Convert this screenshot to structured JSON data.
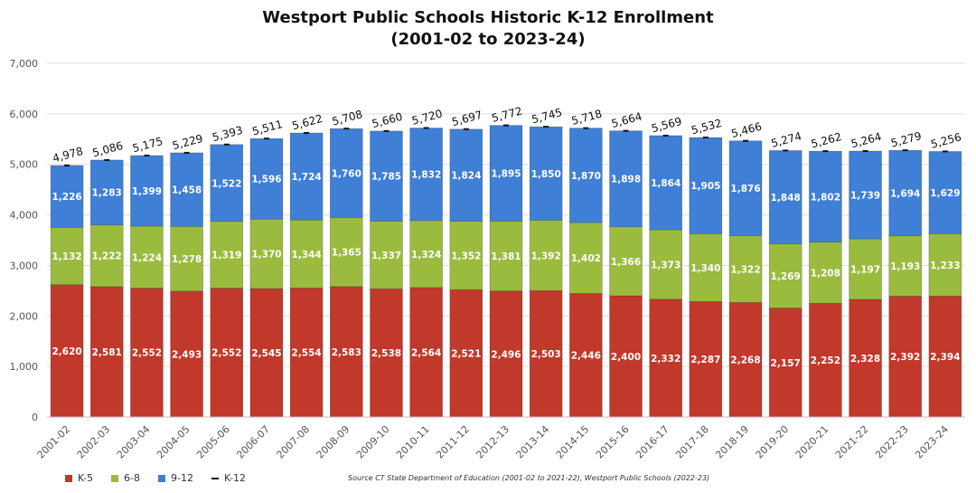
{
  "chart_data": {
    "type": "bar",
    "stacked": true,
    "title": "Westport Public Schools Historic K-12 Enrollment",
    "subtitle": "(2001-02 to 2023-24)",
    "categories": [
      "2001-02",
      "2002-03",
      "2003-04",
      "2004-05",
      "2005-06",
      "2006-07",
      "2007-08",
      "2008-09",
      "2009-10",
      "2010-11",
      "2011-12",
      "2012-13",
      "2013-14",
      "2014-15",
      "2015-16",
      "2016-17",
      "2017-18",
      "2018-19",
      "2019-20",
      "2020-21",
      "2021-22",
      "2022-23",
      "2023-24"
    ],
    "series": [
      {
        "name": "K-5",
        "color": "#c0392b",
        "values": [
          2620,
          2581,
          2552,
          2493,
          2552,
          2545,
          2554,
          2583,
          2538,
          2564,
          2521,
          2496,
          2503,
          2446,
          2400,
          2332,
          2287,
          2268,
          2157,
          2252,
          2328,
          2392,
          2394
        ]
      },
      {
        "name": "6-8",
        "color": "#9bbb3f",
        "values": [
          1132,
          1222,
          1224,
          1278,
          1319,
          1370,
          1344,
          1365,
          1337,
          1324,
          1352,
          1381,
          1392,
          1402,
          1366,
          1373,
          1340,
          1322,
          1269,
          1208,
          1197,
          1193,
          1233
        ]
      },
      {
        "name": "9-12",
        "color": "#3f7fd6",
        "values": [
          1226,
          1283,
          1399,
          1458,
          1522,
          1596,
          1724,
          1760,
          1785,
          1832,
          1824,
          1895,
          1850,
          1870,
          1898,
          1864,
          1905,
          1876,
          1848,
          1802,
          1739,
          1694,
          1629
        ]
      }
    ],
    "totals": {
      "name": "K-12",
      "values": [
        4978,
        5086,
        5175,
        5229,
        5393,
        5511,
        5622,
        5708,
        5660,
        5720,
        5697,
        5772,
        5745,
        5718,
        5664,
        5569,
        5532,
        5466,
        5274,
        5262,
        5264,
        5279,
        5256
      ]
    },
    "ylim": [
      0,
      7000
    ],
    "yticks": [
      0,
      1000,
      2000,
      3000,
      4000,
      5000,
      6000,
      7000
    ],
    "grid": true,
    "legend_position": "bottom-left",
    "source": "Source CT State Department of Education (2001-02 to 2021-22), Westport Public Schools (2022-23)"
  }
}
